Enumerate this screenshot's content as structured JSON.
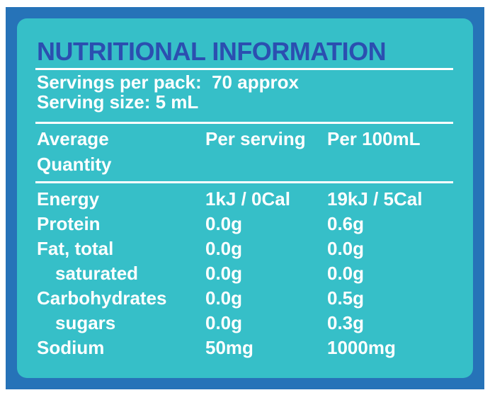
{
  "title": "NUTRITIONAL INFORMATION",
  "servings": [
    "Servings per pack:  70 approx",
    "Serving size: 5 mL"
  ],
  "table": {
    "header": [
      "Average Quantity",
      "Per serving",
      "Per 100mL"
    ],
    "rows": [
      [
        "Energy",
        "1kJ / 0Cal",
        "19kJ / 5Cal"
      ],
      [
        "Protein",
        "0.0g",
        "0.6g"
      ],
      [
        "Fat, total",
        "0.0g",
        "0.0g"
      ],
      [
        "saturated",
        "0.0g",
        "0.0g"
      ],
      [
        "Carbohydrates",
        "0.0g",
        "0.5g"
      ],
      [
        "sugars",
        "0.0g",
        "0.3g"
      ],
      [
        "Sodium",
        "50mg",
        "1000mg"
      ]
    ]
  }
}
